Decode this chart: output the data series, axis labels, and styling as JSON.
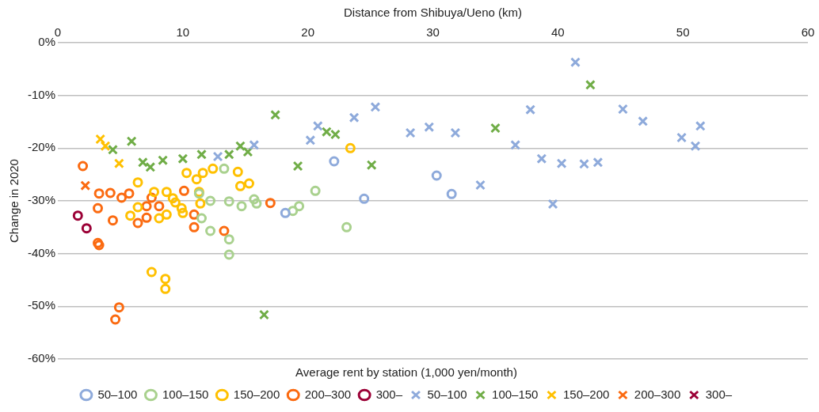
{
  "chart_data": {
    "type": "scatter",
    "xlabel": "Distance from Shibuya/Ueno (km)",
    "ylabel": "Change in 2020",
    "legend_title": "Average rent by station (1,000 yen/month)",
    "legend": "bottom",
    "grid": "y",
    "xlim": [
      0,
      60
    ],
    "xticks": [
      0,
      10,
      20,
      30,
      40,
      50,
      60
    ],
    "ylim": [
      -60,
      0
    ],
    "yticks": [
      {
        "value": -60,
        "label": "-60%"
      },
      {
        "value": -50,
        "label": "-50%"
      },
      {
        "value": -40,
        "label": "-40%"
      },
      {
        "value": -30,
        "label": "-30%"
      },
      {
        "value": -20,
        "label": "-20%"
      },
      {
        "value": -10,
        "label": "-10%"
      },
      {
        "value": 0,
        "label": "0%"
      }
    ],
    "series": [
      {
        "name": "50–100",
        "color": "#8eaadb",
        "marker": "circle",
        "x": [
          18.2,
          22.1,
          24.5,
          30.3,
          31.5
        ],
        "values": [
          -32.3,
          -22.5,
          -29.6,
          -25.2,
          -28.7
        ]
      },
      {
        "name": "100–150",
        "color": "#a9d18e",
        "marker": "circle",
        "x": [
          13.3,
          12.2,
          13.7,
          14.7,
          15.7,
          15.9,
          11.5,
          12.2,
          13.7,
          13.7,
          18.8,
          20.6,
          23.1,
          11.3,
          19.3
        ],
        "values": [
          -23.9,
          -30.0,
          -30.1,
          -31.0,
          -29.7,
          -30.5,
          -33.3,
          -35.7,
          -37.3,
          -40.2,
          -31.9,
          -28.1,
          -35.0,
          -28.6,
          -31.0
        ]
      },
      {
        "name": "150–200",
        "color": "#ffc000",
        "marker": "circle",
        "x": [
          6.4,
          7.7,
          8.7,
          9.2,
          9.4,
          5.8,
          6.4,
          8.1,
          8.7,
          9.9,
          10.0,
          10.3,
          11.1,
          11.3,
          11.4,
          7.5,
          8.6,
          8.6,
          11.6,
          12.4,
          14.4,
          14.6,
          15.3,
          23.4
        ],
        "values": [
          -26.5,
          -28.3,
          -28.3,
          -29.5,
          -30.3,
          -32.8,
          -31.2,
          -33.3,
          -32.6,
          -31.4,
          -32.3,
          -24.7,
          -25.9,
          -28.3,
          -30.5,
          -43.5,
          -44.8,
          -46.7,
          -24.7,
          -23.9,
          -24.5,
          -27.2,
          -26.7,
          -20.0
        ]
      },
      {
        "name": "200–300",
        "color": "#fb6a10",
        "marker": "circle",
        "x": [
          2.0,
          3.3,
          4.2,
          5.1,
          5.7,
          3.2,
          4.4,
          7.5,
          7.1,
          8.1,
          6.4,
          7.1,
          10.1,
          10.9,
          10.9,
          3.2,
          3.3,
          4.9,
          4.6,
          17.0,
          13.3
        ],
        "values": [
          -23.4,
          -28.6,
          -28.5,
          -29.4,
          -28.6,
          -31.4,
          -33.7,
          -29.4,
          -31.0,
          -31.0,
          -34.2,
          -33.2,
          -28.1,
          -32.6,
          -35.0,
          -38.0,
          -38.4,
          -50.2,
          -52.5,
          -30.4,
          -35.7
        ]
      },
      {
        "name": "300–",
        "color": "#9b0036",
        "marker": "circle",
        "x": [
          1.6,
          2.3
        ],
        "values": [
          -32.8,
          -35.2
        ]
      },
      {
        "name": "50–100",
        "color": "#8eaadb",
        "marker": "cross",
        "x": [
          12.8,
          15.7,
          20.2,
          20.8,
          23.7,
          25.4,
          28.2,
          29.7,
          31.8,
          33.8,
          36.6,
          37.8,
          38.7,
          39.6,
          40.3,
          41.4,
          42.1,
          43.2,
          45.2,
          46.8,
          49.9,
          51.0,
          51.4
        ],
        "values": [
          -21.6,
          -19.4,
          -18.5,
          -15.8,
          -14.2,
          -12.2,
          -17.1,
          -16.0,
          -17.1,
          -27.0,
          -19.4,
          -12.7,
          -22.0,
          -30.6,
          -22.9,
          -3.7,
          -23.0,
          -22.7,
          -12.6,
          -14.9,
          -18.0,
          -19.6,
          -15.8
        ]
      },
      {
        "name": "100–150",
        "color": "#70ad47",
        "marker": "cross",
        "x": [
          4.4,
          5.9,
          6.8,
          7.4,
          8.4,
          10.0,
          11.5,
          13.7,
          14.6,
          15.2,
          17.4,
          19.2,
          21.5,
          22.2,
          25.1,
          16.5,
          35.0,
          42.6
        ],
        "values": [
          -20.3,
          -18.7,
          -22.7,
          -23.6,
          -22.3,
          -22.0,
          -21.2,
          -21.2,
          -19.6,
          -20.7,
          -13.7,
          -23.4,
          -16.9,
          -17.4,
          -23.2,
          -51.6,
          -16.2,
          -8.0
        ]
      },
      {
        "name": "150–200",
        "color": "#ffc000",
        "marker": "cross",
        "x": [
          3.4,
          3.8,
          4.9
        ],
        "values": [
          -18.3,
          -19.6,
          -22.9
        ]
      },
      {
        "name": "200–300",
        "color": "#fb6a10",
        "marker": "cross",
        "x": [
          2.2
        ],
        "values": [
          -27.1
        ]
      },
      {
        "name": "300–",
        "color": "#9b0036",
        "marker": "cross"
      }
    ]
  }
}
